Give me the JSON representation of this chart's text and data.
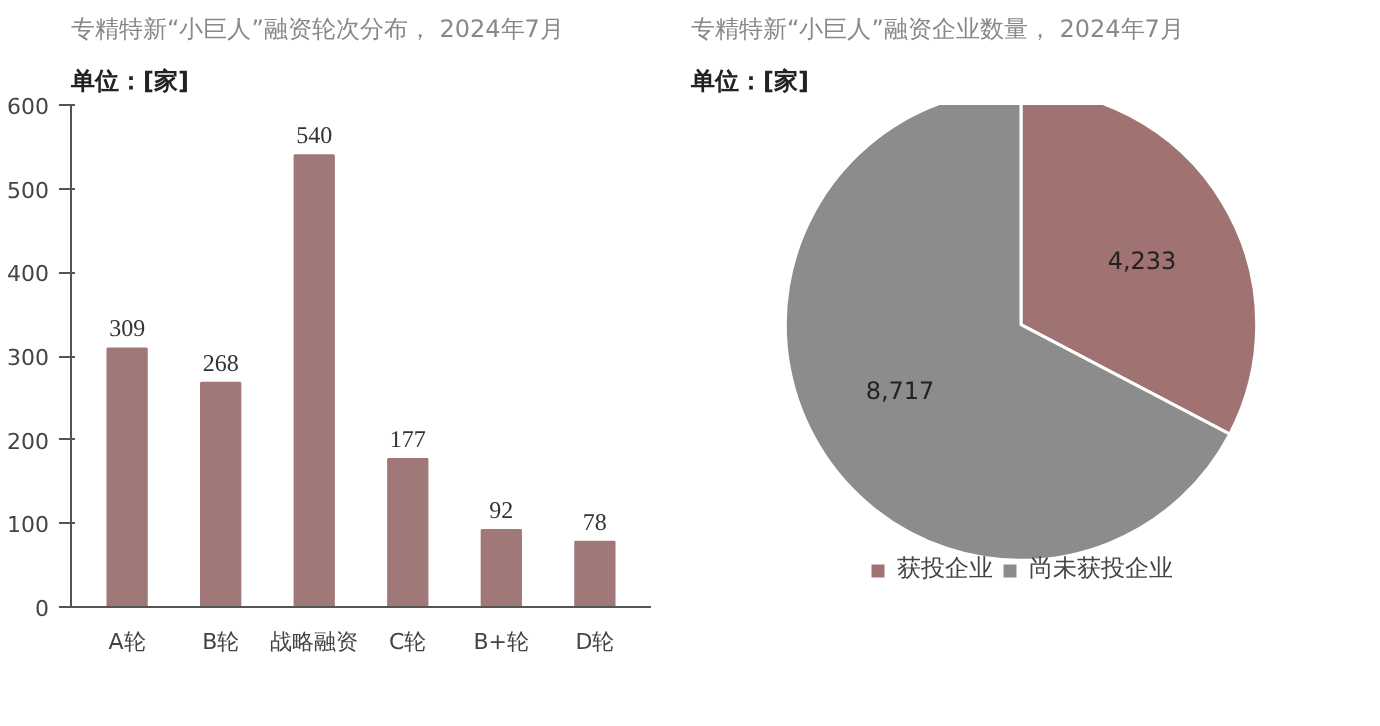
{
  "chart_data": [
    {
      "type": "bar",
      "title": "专精特新“小巨人”融资轮次分布， 2024年7月",
      "subtitle": "单位：[家]",
      "categories": [
        "A轮",
        "B轮",
        "战略融资",
        "C轮",
        "B+轮",
        "D轮"
      ],
      "values": [
        309,
        268,
        540,
        177,
        92,
        78
      ],
      "color": "#a07878",
      "ylim": [
        0,
        600
      ],
      "yticks": [
        0,
        100,
        200,
        300,
        400,
        500,
        600
      ],
      "grid": false,
      "data_labels": true
    },
    {
      "type": "pie",
      "title": "专精特新“小巨人”融资企业数量， 2024年7月",
      "subtitle": "单位：[家]",
      "categories": [
        "获投企业",
        "尚未获投企业"
      ],
      "values": [
        4233,
        8717
      ],
      "colors": [
        "#a07272",
        "#8c8c8c"
      ],
      "value_labels": [
        "4,233",
        "8,717"
      ],
      "legend": "bottom"
    }
  ]
}
